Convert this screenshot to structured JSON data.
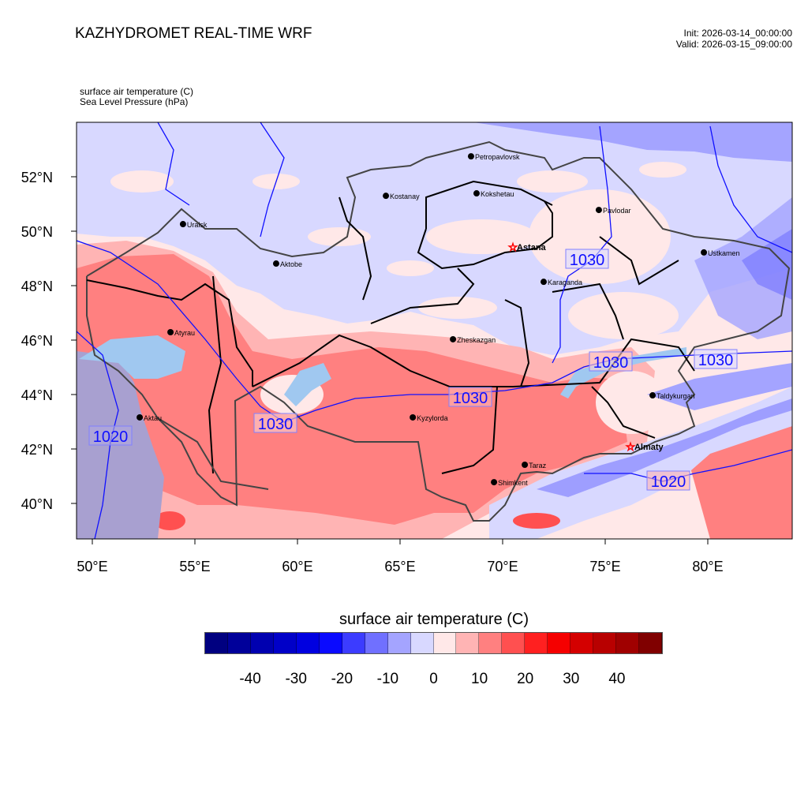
{
  "header": {
    "title": "KAZHYDROMET REAL-TIME WRF",
    "init": "Init: 2026-03-14_00:00:00",
    "valid": "Valid: 2026-03-15_09:00:00",
    "field1": "surface air temperature   (C)",
    "field2": "Sea Level Pressure   (hPa)"
  },
  "map": {
    "lon_ticks": [
      {
        "v": 50,
        "label": "50°E"
      },
      {
        "v": 55,
        "label": "55°E"
      },
      {
        "v": 60,
        "label": "60°E"
      },
      {
        "v": 65,
        "label": "65°E"
      },
      {
        "v": 70,
        "label": "70°E"
      },
      {
        "v": 75,
        "label": "75°E"
      },
      {
        "v": 80,
        "label": "80°E"
      }
    ],
    "lat_ticks": [
      {
        "v": 52,
        "label": "52°N"
      },
      {
        "v": 50,
        "label": "50°N"
      },
      {
        "v": 48,
        "label": "48°N"
      },
      {
        "v": 46,
        "label": "46°N"
      },
      {
        "v": 44,
        "label": "44°N"
      },
      {
        "v": 42,
        "label": "42°N"
      },
      {
        "v": 40,
        "label": "40°N"
      }
    ],
    "cities": [
      {
        "name": "Uralsk",
        "lon": 54.42,
        "lat": 50.26,
        "capital": false
      },
      {
        "name": "Aktobe",
        "lon": 58.96,
        "lat": 48.81,
        "capital": false
      },
      {
        "name": "Atyrau",
        "lon": 53.81,
        "lat": 46.29,
        "capital": false
      },
      {
        "name": "Aktau",
        "lon": 52.31,
        "lat": 43.16,
        "capital": false
      },
      {
        "name": "Kostanay",
        "lon": 64.31,
        "lat": 51.3,
        "capital": false
      },
      {
        "name": "Petropavlovsk",
        "lon": 68.46,
        "lat": 52.75,
        "capital": false
      },
      {
        "name": "Kokshetau",
        "lon": 68.73,
        "lat": 51.39,
        "capital": false
      },
      {
        "name": "Pavlodar",
        "lon": 74.69,
        "lat": 50.78,
        "capital": false
      },
      {
        "name": "Astana",
        "lon": 70.5,
        "lat": 49.42,
        "capital": true
      },
      {
        "name": "Karaganda",
        "lon": 72.0,
        "lat": 48.14,
        "capital": false
      },
      {
        "name": "Ustkamen",
        "lon": 79.81,
        "lat": 49.22,
        "capital": false
      },
      {
        "name": "Zheskazgan",
        "lon": 67.58,
        "lat": 46.03,
        "capital": false
      },
      {
        "name": "Kyzylorda",
        "lon": 65.62,
        "lat": 43.16,
        "capital": false
      },
      {
        "name": "Taldykurgan",
        "lon": 77.31,
        "lat": 43.97,
        "capital": false
      },
      {
        "name": "Almaty",
        "lon": 76.23,
        "lat": 42.09,
        "capital": true
      },
      {
        "name": "Taraz",
        "lon": 71.08,
        "lat": 41.42,
        "capital": false
      },
      {
        "name": "Shimkent",
        "lon": 69.58,
        "lat": 40.78,
        "capital": false
      }
    ],
    "pressure_labels": [
      "1030",
      "1020",
      "1030",
      "1030",
      "1030",
      "1030",
      "1020"
    ]
  },
  "colorbar": {
    "title": "surface air temperature  (C)",
    "colors": [
      "#000080",
      "#00009a",
      "#0000b0",
      "#0000c8",
      "#0000e0",
      "#0a0aff",
      "#3c3cff",
      "#7070ff",
      "#a4a4ff",
      "#d8d8ff",
      "#ffe8e8",
      "#ffb4b4",
      "#ff8080",
      "#ff5050",
      "#ff2020",
      "#f50000",
      "#d40000",
      "#b80000",
      "#a00000",
      "#800000"
    ],
    "labels": [
      "-40",
      "-30",
      "-20",
      "-10",
      "0",
      "10",
      "20",
      "30",
      "40"
    ]
  }
}
